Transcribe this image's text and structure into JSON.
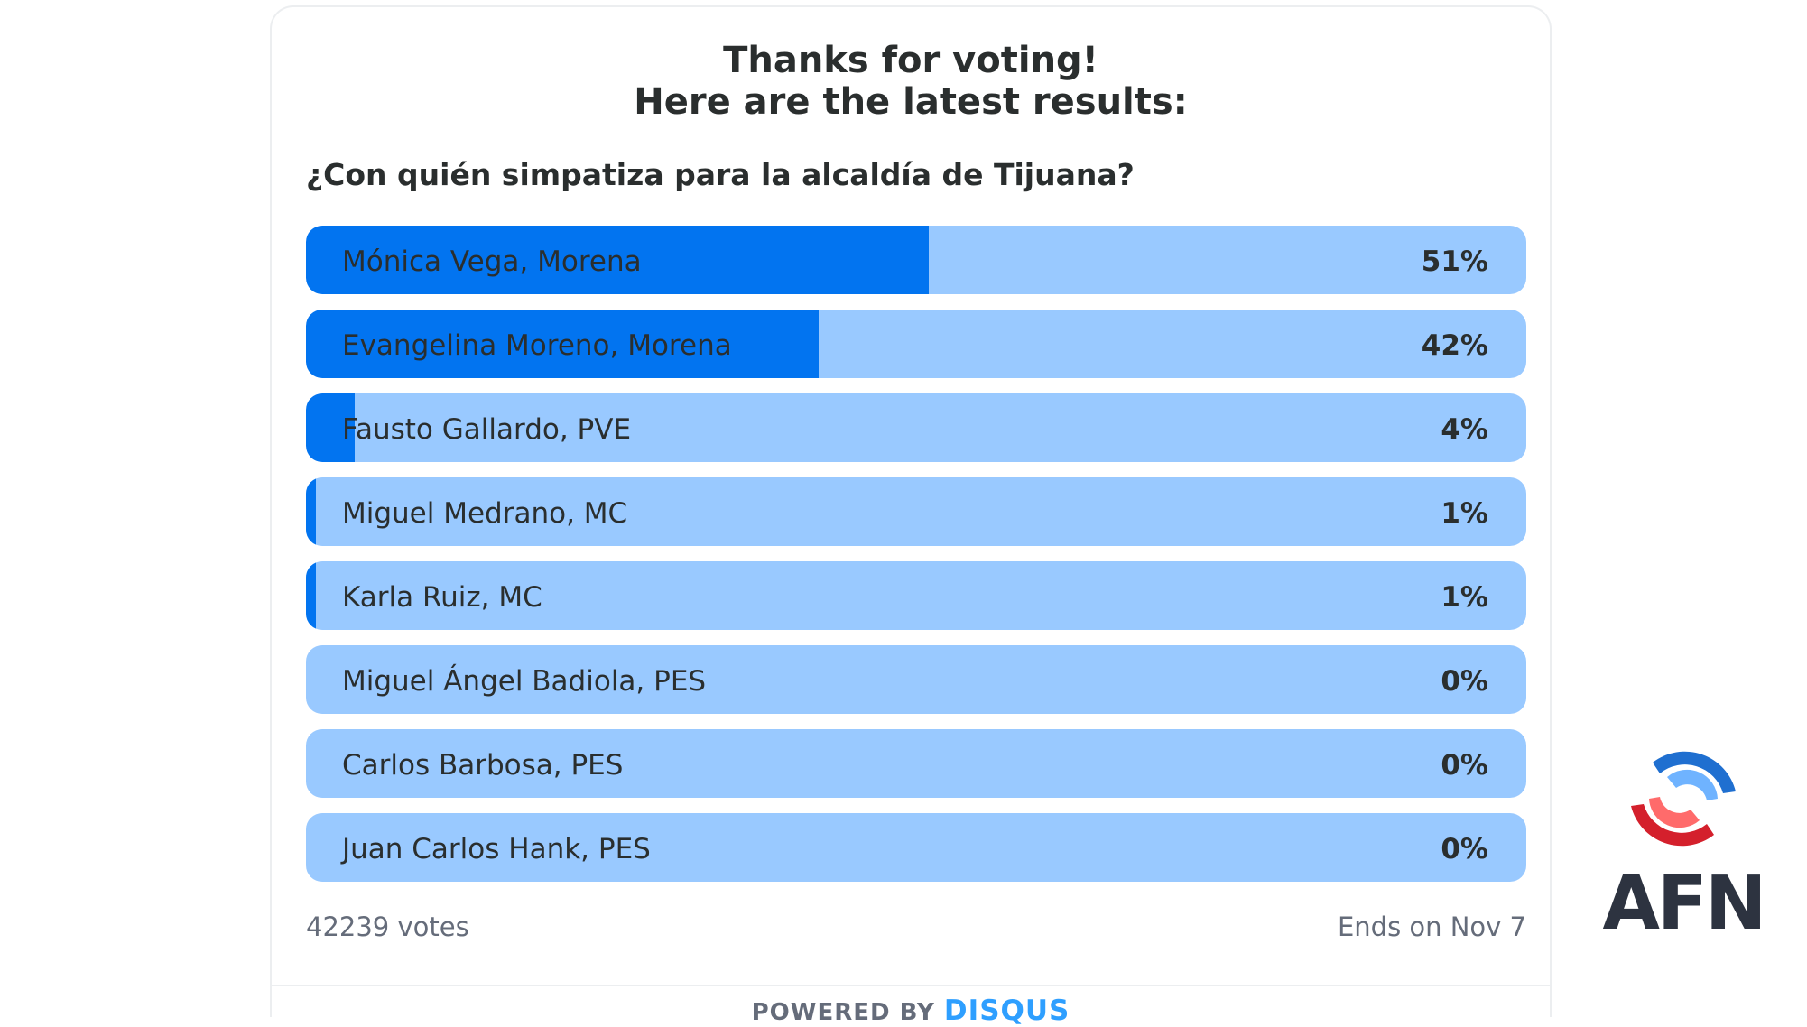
{
  "poll": {
    "title_line1": "Thanks for voting!",
    "title_line2": "Here are the latest results:",
    "question": "¿Con quién simpatiza para la alcaldía de Tijuana?",
    "options": [
      {
        "label": "Mónica Vega, Morena",
        "percent_text": "51%",
        "percent": 51
      },
      {
        "label": "Evangelina Moreno, Morena",
        "percent_text": "42%",
        "percent": 42
      },
      {
        "label": "Fausto Gallardo, PVE",
        "percent_text": "4%",
        "percent": 4
      },
      {
        "label": "Miguel Medrano, MC",
        "percent_text": "1%",
        "percent": 1
      },
      {
        "label": "Karla Ruiz, MC",
        "percent_text": "1%",
        "percent": 1
      },
      {
        "label": "Miguel Ángel Badiola, PES",
        "percent_text": "0%",
        "percent": 0
      },
      {
        "label": "Carlos Barbosa, PES",
        "percent_text": "0%",
        "percent": 0
      },
      {
        "label": "Juan Carlos Hank, PES",
        "percent_text": "0%",
        "percent": 0
      }
    ],
    "votes": "42239 votes",
    "ends": "Ends on Nov 7"
  },
  "footer": {
    "powered_by": "POWERED BY",
    "brand": "DISQUS"
  },
  "logo": {
    "text": "AFN",
    "icon": "afn-swirl-icon"
  },
  "colors": {
    "bar_track": "#99c9ff",
    "bar_fill": "#0274f0",
    "text": "#2a2e2e",
    "muted": "#656c7a",
    "disqus_blue": "#2e9fff",
    "logo_red": "#d4202c",
    "logo_blue": "#1f6fd0",
    "logo_text": "#2d3340"
  }
}
